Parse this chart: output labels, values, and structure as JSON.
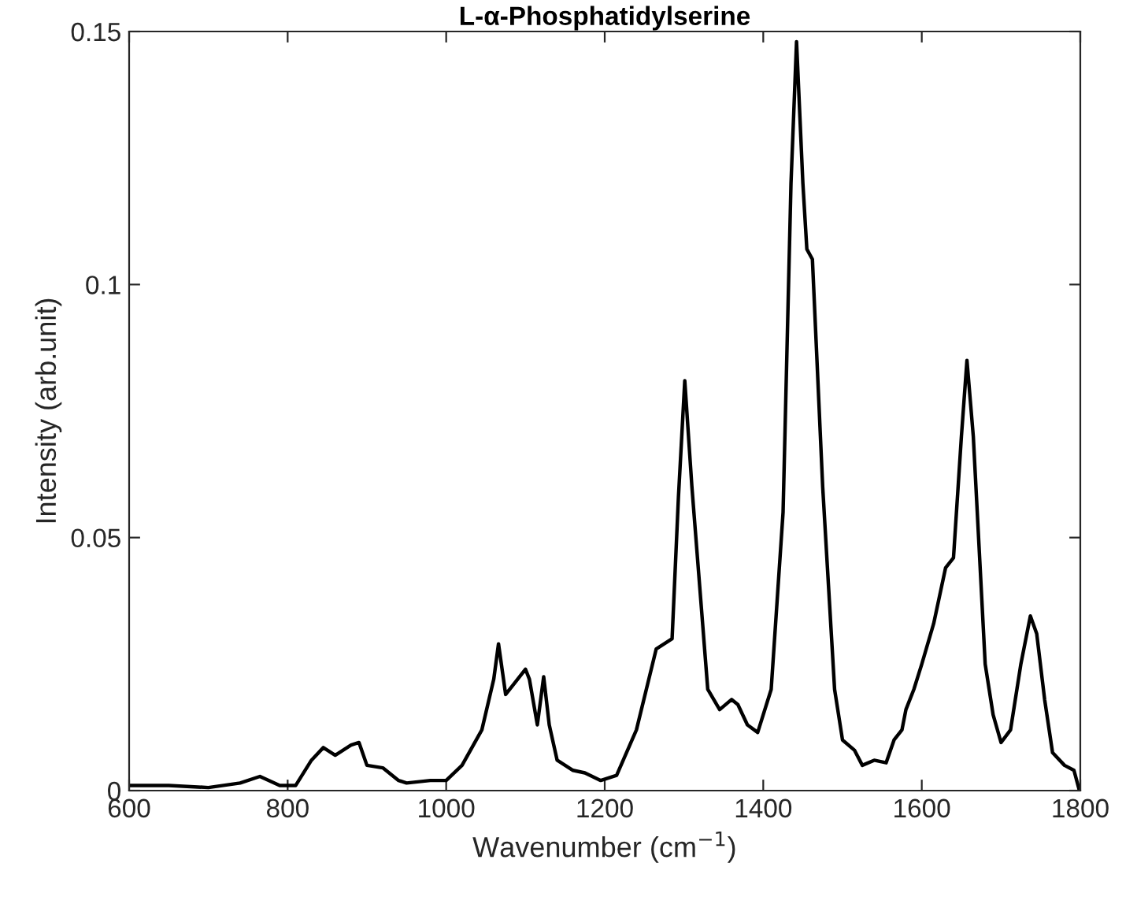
{
  "chart_data": {
    "type": "line",
    "title": "L-α-Phosphatidylserine",
    "xlabel": "Wavenumber (cm$^{−1}$)",
    "ylabel": "Intensity (arb.unit)",
    "xlim": [
      600,
      1800
    ],
    "ylim": [
      0,
      0.15
    ],
    "xticks": [
      600,
      800,
      1000,
      1200,
      1400,
      1600,
      1800
    ],
    "yticks": [
      0,
      0.05,
      0.1,
      0.15
    ],
    "grid": false,
    "legend": false,
    "marker": "none",
    "line_style": "solid",
    "series": [
      {
        "color": "#000000",
        "x": [
          600,
          650,
          700,
          740,
          765,
          790,
          810,
          830,
          845,
          860,
          880,
          890,
          900,
          920,
          940,
          950,
          980,
          1000,
          1020,
          1045,
          1060,
          1066,
          1075,
          1085,
          1100,
          1105,
          1115,
          1123,
          1130,
          1140,
          1160,
          1175,
          1195,
          1215,
          1240,
          1265,
          1275,
          1285,
          1293,
          1301,
          1310,
          1330,
          1345,
          1360,
          1368,
          1380,
          1393,
          1410,
          1425,
          1435,
          1442,
          1450,
          1455,
          1462,
          1475,
          1490,
          1500,
          1515,
          1525,
          1540,
          1555,
          1565,
          1575,
          1580,
          1590,
          1600,
          1615,
          1630,
          1640,
          1650,
          1657,
          1665,
          1680,
          1690,
          1700,
          1712,
          1725,
          1737,
          1745,
          1755,
          1765,
          1780,
          1792,
          1798
        ],
        "values": [
          0.001,
          0.001,
          0.0006,
          0.0015,
          0.0028,
          0.001,
          0.001,
          0.006,
          0.0085,
          0.007,
          0.009,
          0.0095,
          0.005,
          0.0045,
          0.002,
          0.0015,
          0.002,
          0.002,
          0.005,
          0.012,
          0.022,
          0.029,
          0.019,
          0.021,
          0.024,
          0.022,
          0.013,
          0.0225,
          0.013,
          0.006,
          0.004,
          0.0035,
          0.002,
          0.003,
          0.012,
          0.028,
          0.029,
          0.03,
          0.058,
          0.081,
          0.06,
          0.02,
          0.016,
          0.018,
          0.017,
          0.013,
          0.0115,
          0.02,
          0.055,
          0.12,
          0.148,
          0.12,
          0.107,
          0.105,
          0.06,
          0.02,
          0.01,
          0.008,
          0.005,
          0.006,
          0.0055,
          0.01,
          0.012,
          0.016,
          0.02,
          0.025,
          0.033,
          0.044,
          0.046,
          0.07,
          0.085,
          0.07,
          0.025,
          0.015,
          0.0095,
          0.012,
          0.025,
          0.0345,
          0.031,
          0.018,
          0.0075,
          0.005,
          0.004,
          0.0005
        ]
      }
    ]
  }
}
